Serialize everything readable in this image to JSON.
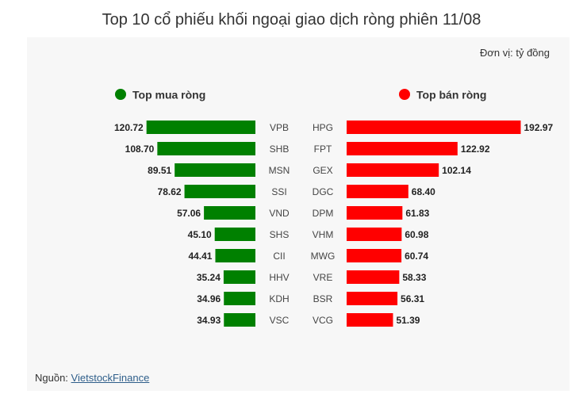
{
  "title": "Top 10 cổ phiếu khối ngoại giao dịch ròng phiên 11/08",
  "unit_label": "Đơn vị: tỷ đồng",
  "source_prefix": "Nguồn: ",
  "source_link": "VietstockFinance",
  "colors": {
    "buy": "#008000",
    "sell": "#ff0000"
  },
  "chart_data": [
    {
      "type": "bar",
      "name": "Top mua ròng",
      "orientation": "horizontal",
      "direction": "left",
      "categories": [
        "VPB",
        "SHB",
        "MSN",
        "SSI",
        "VND",
        "SHS",
        "CII",
        "HHV",
        "KDH",
        "VSC"
      ],
      "values": [
        120.72,
        108.7,
        89.51,
        78.62,
        57.06,
        45.1,
        44.41,
        35.24,
        34.96,
        34.93
      ],
      "color": "#008000",
      "legend_position": "top"
    },
    {
      "type": "bar",
      "name": "Top bán ròng",
      "orientation": "horizontal",
      "direction": "right",
      "categories": [
        "HPG",
        "FPT",
        "GEX",
        "DGC",
        "DPM",
        "VHM",
        "MWG",
        "VRE",
        "BSR",
        "VCG"
      ],
      "values": [
        192.97,
        122.92,
        102.14,
        68.4,
        61.83,
        60.98,
        60.74,
        58.33,
        56.31,
        51.39
      ],
      "color": "#ff0000",
      "legend_position": "top"
    }
  ]
}
